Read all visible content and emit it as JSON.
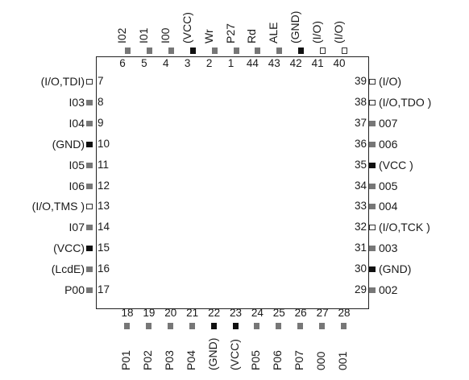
{
  "pins": {
    "top": [
      {
        "num": "6",
        "name": "I02",
        "type": "sig"
      },
      {
        "num": "5",
        "name": "I01",
        "type": "sig"
      },
      {
        "num": "4",
        "name": "I00",
        "type": "sig"
      },
      {
        "num": "3",
        "name": "(VCC)",
        "type": "pwr"
      },
      {
        "num": "2",
        "name": "Wr",
        "type": "sig"
      },
      {
        "num": "1",
        "name": "P27",
        "type": "sig"
      },
      {
        "num": "44",
        "name": "Rd",
        "type": "sig"
      },
      {
        "num": "43",
        "name": "ALE",
        "type": "sig"
      },
      {
        "num": "42",
        "name": "(GND)",
        "type": "pwr"
      },
      {
        "num": "41",
        "name": "(I/O)",
        "type": "io"
      },
      {
        "num": "40",
        "name": "(I/O)",
        "type": "io"
      }
    ],
    "left": [
      {
        "num": "7",
        "name": "(I/O,TDI)",
        "type": "io"
      },
      {
        "num": "8",
        "name": "I03",
        "type": "sig"
      },
      {
        "num": "9",
        "name": "I04",
        "type": "sig"
      },
      {
        "num": "10",
        "name": "(GND)",
        "type": "pwr"
      },
      {
        "num": "11",
        "name": "I05",
        "type": "sig"
      },
      {
        "num": "12",
        "name": "I06",
        "type": "sig"
      },
      {
        "num": "13",
        "name": "(I/O,TMS )",
        "type": "io"
      },
      {
        "num": "14",
        "name": "I07",
        "type": "sig"
      },
      {
        "num": "15",
        "name": "(VCC)",
        "type": "pwr"
      },
      {
        "num": "16",
        "name": "(LcdE)",
        "type": "sig"
      },
      {
        "num": "17",
        "name": "P00",
        "type": "sig"
      }
    ],
    "right": [
      {
        "num": "39",
        "name": "(I/O)",
        "type": "io"
      },
      {
        "num": "38",
        "name": "(I/O,TDO )",
        "type": "io"
      },
      {
        "num": "37",
        "name": "007",
        "type": "sig"
      },
      {
        "num": "36",
        "name": "006",
        "type": "sig"
      },
      {
        "num": "35",
        "name": "(VCC )",
        "type": "pwr"
      },
      {
        "num": "34",
        "name": "005",
        "type": "sig"
      },
      {
        "num": "33",
        "name": "004",
        "type": "sig"
      },
      {
        "num": "32",
        "name": "(I/O,TCK )",
        "type": "io"
      },
      {
        "num": "31",
        "name": "003",
        "type": "sig"
      },
      {
        "num": "30",
        "name": "(GND)",
        "type": "pwr"
      },
      {
        "num": "29",
        "name": "002",
        "type": "sig"
      }
    ],
    "bottom": [
      {
        "num": "18",
        "name": "P01",
        "type": "sig"
      },
      {
        "num": "19",
        "name": "P02",
        "type": "sig"
      },
      {
        "num": "20",
        "name": "P03",
        "type": "sig"
      },
      {
        "num": "21",
        "name": "P04",
        "type": "sig"
      },
      {
        "num": "22",
        "name": "(GND)",
        "type": "pwr"
      },
      {
        "num": "23",
        "name": "(VCC)",
        "type": "pwr"
      },
      {
        "num": "24",
        "name": "P05",
        "type": "sig"
      },
      {
        "num": "25",
        "name": "P06",
        "type": "sig"
      },
      {
        "num": "26",
        "name": "P07",
        "type": "sig"
      },
      {
        "num": "27",
        "name": "000",
        "type": "sig"
      },
      {
        "num": "28",
        "name": "001",
        "type": "sig"
      }
    ]
  },
  "pad_colors": {
    "io": "#ffffff",
    "sig": "#777777",
    "pwr": "#111111"
  }
}
